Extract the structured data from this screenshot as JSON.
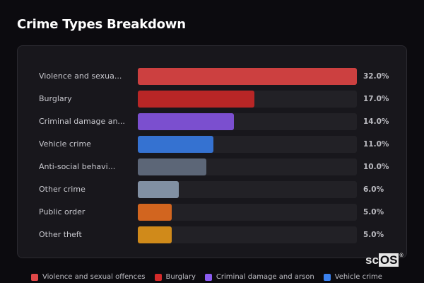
{
  "header": {
    "title": "Crime Types Breakdown"
  },
  "chart_data": {
    "type": "bar",
    "orientation": "horizontal",
    "title": "Crime Types Breakdown",
    "categories": [
      "Violence and sexual offences",
      "Burglary",
      "Criminal damage and arson",
      "Vehicle crime",
      "Anti-social behaviour",
      "Other crime",
      "Public order",
      "Other theft"
    ],
    "display_labels": [
      "Violence and sexua...",
      "Burglary",
      "Criminal damage an...",
      "Vehicle crime",
      "Anti-social behavi...",
      "Other crime",
      "Public order",
      "Other theft"
    ],
    "values": [
      32.0,
      17.0,
      14.0,
      11.0,
      10.0,
      6.0,
      5.0,
      5.0
    ],
    "value_labels": [
      "32.0%",
      "17.0%",
      "14.0%",
      "11.0%",
      "10.0%",
      "6.0%",
      "5.0%",
      "5.0%"
    ],
    "colors": [
      "#cc4040",
      "#b82626",
      "#7b4fcf",
      "#3572d1",
      "#5c6677",
      "#8190a3",
      "#d2651f",
      "#d08a1a"
    ],
    "unit": "%",
    "xlim": [
      0,
      32
    ],
    "legend_position": "bottom",
    "grid": false
  },
  "legend": {
    "items": [
      {
        "label": "Violence and sexual offences",
        "color": "#e04848"
      },
      {
        "label": "Burglary",
        "color": "#d42a2a"
      },
      {
        "label": "Criminal damage and arson",
        "color": "#8b5cf0"
      },
      {
        "label": "Vehicle crime",
        "color": "#3b82f0"
      }
    ]
  },
  "watermark": {
    "left": "sc",
    "boxed": "OS",
    "mark": "®"
  }
}
